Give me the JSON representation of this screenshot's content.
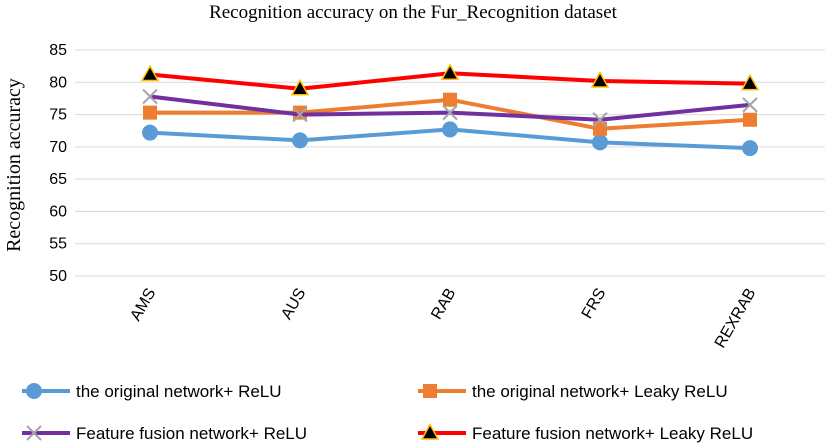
{
  "chart_data": {
    "type": "line",
    "title": "Recognition accuracy on the Fur_Recognition dataset",
    "xlabel": "",
    "ylabel": "Recognition accuracy",
    "categories": [
      "AMS",
      "AUS",
      "RAB",
      "FRS",
      "REXRAB"
    ],
    "ylim": [
      50,
      85
    ],
    "yticks": [
      50,
      55,
      60,
      65,
      70,
      75,
      80,
      85
    ],
    "grid": "horizontal",
    "legend_position": "bottom",
    "series": [
      {
        "name": "the original network+ ReLU",
        "values": [
          72.2,
          71.0,
          72.7,
          70.7,
          69.8
        ],
        "color": "#5B9BD5",
        "marker": "circle"
      },
      {
        "name": "the original network+ Leaky  ReLU",
        "values": [
          75.3,
          75.3,
          77.3,
          72.8,
          74.2
        ],
        "color": "#ED7D31",
        "marker": "square"
      },
      {
        "name": "Feature fusion network+ ReLU",
        "values": [
          77.8,
          75.0,
          75.3,
          74.2,
          76.5
        ],
        "color": "#7030A0",
        "marker": "x"
      },
      {
        "name": "Feature fusion network+ Leaky  ReLU",
        "values": [
          81.2,
          79.0,
          81.4,
          80.2,
          79.8
        ],
        "color": "#FF0000",
        "marker": "triangle"
      }
    ]
  }
}
